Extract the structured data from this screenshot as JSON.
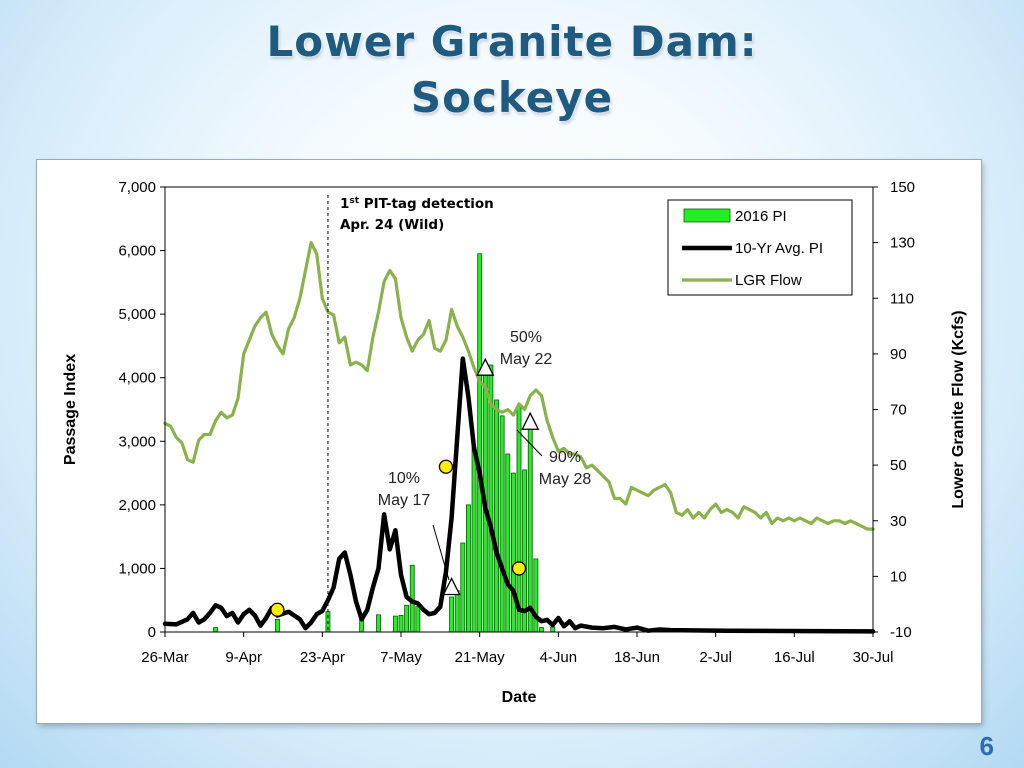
{
  "slide": {
    "title_line1": "Lower Granite Dam:",
    "title_line2": "Sockeye",
    "page_number": "6"
  },
  "chart_data": {
    "type": "bar",
    "title": "",
    "xlabel": "Date",
    "ylabel": "Passage Index",
    "y2label": "Lower Granite Flow  (Kcfs)",
    "ylim": [
      0,
      7000
    ],
    "y2lim": [
      -10,
      150
    ],
    "y_ticks": [
      "0",
      "1,000",
      "2,000",
      "3,000",
      "4,000",
      "5,000",
      "6,000",
      "7,000"
    ],
    "y2_ticks": [
      "-10",
      "10",
      "30",
      "50",
      "70",
      "90",
      "110",
      "130",
      "150"
    ],
    "x_range_days": [
      0,
      126
    ],
    "x_ticks": [
      {
        "day": 0,
        "label": "26-Mar"
      },
      {
        "day": 14,
        "label": "9-Apr"
      },
      {
        "day": 28,
        "label": "23-Apr"
      },
      {
        "day": 42,
        "label": "7-May"
      },
      {
        "day": 56,
        "label": "21-May"
      },
      {
        "day": 70,
        "label": "4-Jun"
      },
      {
        "day": 84,
        "label": "18-Jun"
      },
      {
        "day": 98,
        "label": "2-Jul"
      },
      {
        "day": 112,
        "label": "16-Jul"
      },
      {
        "day": 126,
        "label": "30-Jul"
      }
    ],
    "grid": false,
    "legend_position": "top-right",
    "colors": {
      "bar": "#22ee22",
      "bar_edge": "#115511",
      "avg": "#000000",
      "flow": "#8ab24a",
      "marker": "#ffee00"
    },
    "series": [
      {
        "name": "2016 PI",
        "type": "bar",
        "axis": "left",
        "points": [
          [
            9,
            70
          ],
          [
            20,
            200
          ],
          [
            29,
            320
          ],
          [
            35,
            260
          ],
          [
            38,
            270
          ],
          [
            41,
            250
          ],
          [
            42,
            260
          ],
          [
            43,
            420
          ],
          [
            44,
            1050
          ],
          [
            45,
            400
          ],
          [
            51,
            550
          ],
          [
            52,
            650
          ],
          [
            53,
            1400
          ],
          [
            54,
            2000
          ],
          [
            55,
            2900
          ],
          [
            56,
            5950
          ],
          [
            57,
            4200
          ],
          [
            58,
            4200
          ],
          [
            59,
            3650
          ],
          [
            60,
            3400
          ],
          [
            61,
            2800
          ],
          [
            62,
            2500
          ],
          [
            63,
            3550
          ],
          [
            64,
            2550
          ],
          [
            65,
            3300
          ],
          [
            66,
            1150
          ],
          [
            67,
            70
          ],
          [
            69,
            80
          ]
        ]
      },
      {
        "name": "10-Yr Avg. PI",
        "type": "line",
        "axis": "left",
        "points": [
          [
            0,
            130
          ],
          [
            2,
            120
          ],
          [
            4,
            200
          ],
          [
            5,
            300
          ],
          [
            6,
            150
          ],
          [
            7,
            200
          ],
          [
            8,
            300
          ],
          [
            9,
            420
          ],
          [
            10,
            380
          ],
          [
            11,
            250
          ],
          [
            12,
            300
          ],
          [
            13,
            150
          ],
          [
            14,
            280
          ],
          [
            15,
            350
          ],
          [
            16,
            260
          ],
          [
            17,
            100
          ],
          [
            18,
            220
          ],
          [
            19,
            380
          ],
          [
            20,
            260
          ],
          [
            22,
            320
          ],
          [
            24,
            200
          ],
          [
            25,
            60
          ],
          [
            26,
            150
          ],
          [
            27,
            280
          ],
          [
            28,
            330
          ],
          [
            29,
            500
          ],
          [
            30,
            700
          ],
          [
            31,
            1150
          ],
          [
            32,
            1250
          ],
          [
            33,
            900
          ],
          [
            34,
            480
          ],
          [
            35,
            200
          ],
          [
            36,
            350
          ],
          [
            37,
            700
          ],
          [
            38,
            1000
          ],
          [
            39,
            1850
          ],
          [
            40,
            1300
          ],
          [
            41,
            1600
          ],
          [
            42,
            900
          ],
          [
            43,
            550
          ],
          [
            44,
            480
          ],
          [
            45,
            450
          ],
          [
            46,
            350
          ],
          [
            47,
            280
          ],
          [
            48,
            300
          ],
          [
            49,
            400
          ],
          [
            50,
            950
          ],
          [
            51,
            1800
          ],
          [
            52,
            3050
          ],
          [
            53,
            4300
          ],
          [
            54,
            3700
          ],
          [
            55,
            2900
          ],
          [
            56,
            2500
          ],
          [
            57,
            1950
          ],
          [
            58,
            1650
          ],
          [
            59,
            1250
          ],
          [
            60,
            1000
          ],
          [
            61,
            750
          ],
          [
            62,
            650
          ],
          [
            63,
            350
          ],
          [
            64,
            330
          ],
          [
            65,
            380
          ],
          [
            66,
            240
          ],
          [
            67,
            170
          ],
          [
            68,
            190
          ],
          [
            69,
            110
          ],
          [
            70,
            220
          ],
          [
            71,
            90
          ],
          [
            72,
            170
          ],
          [
            73,
            60
          ],
          [
            74,
            100
          ],
          [
            76,
            70
          ],
          [
            78,
            60
          ],
          [
            80,
            80
          ],
          [
            82,
            40
          ],
          [
            84,
            70
          ],
          [
            86,
            20
          ],
          [
            88,
            40
          ],
          [
            90,
            30
          ],
          [
            94,
            25
          ],
          [
            100,
            20
          ],
          [
            110,
            15
          ],
          [
            126,
            10
          ]
        ]
      },
      {
        "name": "LGR Flow",
        "type": "line",
        "axis": "right",
        "points": [
          [
            0,
            65
          ],
          [
            1,
            64
          ],
          [
            2,
            60
          ],
          [
            3,
            58
          ],
          [
            4,
            52
          ],
          [
            5,
            51
          ],
          [
            6,
            59
          ],
          [
            7,
            61
          ],
          [
            8,
            61
          ],
          [
            9,
            66
          ],
          [
            10,
            69
          ],
          [
            11,
            67
          ],
          [
            12,
            68
          ],
          [
            13,
            74
          ],
          [
            14,
            90
          ],
          [
            15,
            95
          ],
          [
            16,
            100
          ],
          [
            17,
            103
          ],
          [
            18,
            105
          ],
          [
            19,
            97
          ],
          [
            20,
            93
          ],
          [
            21,
            90
          ],
          [
            22,
            99
          ],
          [
            23,
            103
          ],
          [
            24,
            110
          ],
          [
            25,
            120
          ],
          [
            26,
            130
          ],
          [
            27,
            126
          ],
          [
            28,
            110
          ],
          [
            29,
            105
          ],
          [
            30,
            104
          ],
          [
            31,
            94
          ],
          [
            32,
            96
          ],
          [
            33,
            86
          ],
          [
            34,
            87
          ],
          [
            35,
            86
          ],
          [
            36,
            84
          ],
          [
            37,
            96
          ],
          [
            38,
            105
          ],
          [
            39,
            116
          ],
          [
            40,
            120
          ],
          [
            41,
            117
          ],
          [
            42,
            103
          ],
          [
            43,
            96
          ],
          [
            44,
            91
          ],
          [
            45,
            95
          ],
          [
            46,
            97
          ],
          [
            47,
            102
          ],
          [
            48,
            92
          ],
          [
            49,
            91
          ],
          [
            50,
            95
          ],
          [
            51,
            106
          ],
          [
            52,
            100
          ],
          [
            53,
            96
          ],
          [
            54,
            91
          ],
          [
            55,
            85
          ],
          [
            56,
            80
          ],
          [
            57,
            78
          ],
          [
            58,
            72
          ],
          [
            59,
            70
          ],
          [
            60,
            69
          ],
          [
            61,
            70
          ],
          [
            62,
            68
          ],
          [
            63,
            72
          ],
          [
            64,
            70
          ],
          [
            65,
            75
          ],
          [
            66,
            77
          ],
          [
            67,
            75
          ],
          [
            68,
            66
          ],
          [
            69,
            60
          ],
          [
            70,
            55
          ],
          [
            71,
            56
          ],
          [
            72,
            54
          ],
          [
            73,
            54
          ],
          [
            74,
            53
          ],
          [
            75,
            49
          ],
          [
            76,
            50
          ],
          [
            77,
            48
          ],
          [
            78,
            46
          ],
          [
            79,
            44
          ],
          [
            80,
            38
          ],
          [
            81,
            38
          ],
          [
            82,
            36
          ],
          [
            83,
            42
          ],
          [
            84,
            41
          ],
          [
            85,
            40
          ],
          [
            86,
            39
          ],
          [
            87,
            41
          ],
          [
            88,
            42
          ],
          [
            89,
            43
          ],
          [
            90,
            40
          ],
          [
            91,
            33
          ],
          [
            92,
            32
          ],
          [
            93,
            34
          ],
          [
            94,
            31
          ],
          [
            95,
            33
          ],
          [
            96,
            31
          ],
          [
            97,
            34
          ],
          [
            98,
            36
          ],
          [
            99,
            33
          ],
          [
            100,
            34
          ],
          [
            101,
            33
          ],
          [
            102,
            31
          ],
          [
            103,
            35
          ],
          [
            104,
            34
          ],
          [
            105,
            33
          ],
          [
            106,
            31
          ],
          [
            107,
            33
          ],
          [
            108,
            29
          ],
          [
            109,
            31
          ],
          [
            110,
            30
          ],
          [
            111,
            31
          ],
          [
            112,
            30
          ],
          [
            113,
            31
          ],
          [
            114,
            30
          ],
          [
            115,
            29
          ],
          [
            116,
            31
          ],
          [
            117,
            30
          ],
          [
            118,
            29
          ],
          [
            119,
            30
          ],
          [
            120,
            30
          ],
          [
            121,
            29
          ],
          [
            122,
            30
          ],
          [
            123,
            29
          ],
          [
            124,
            28
          ],
          [
            125,
            27
          ],
          [
            126,
            27
          ]
        ]
      }
    ],
    "markers": {
      "milestone_triangles": [
        {
          "day": 51,
          "value": 700
        },
        {
          "day": 57,
          "value": 4150
        },
        {
          "day": 65,
          "value": 3300
        }
      ],
      "yellow_circles": [
        {
          "day": 20,
          "value": 350
        },
        {
          "day": 50,
          "value": 2600
        },
        {
          "day": 63,
          "value": 1000
        }
      ]
    },
    "annotations": {
      "pit_line_day": 29,
      "pit_text_line1_base": "1",
      "pit_text_line1_sup": "st",
      "pit_text_line1_rest": " PIT-tag detection",
      "pit_text_line2": "Apr. 24 (Wild)",
      "p10_pct": "10%",
      "p10_date": "May 17",
      "p50_pct": "50%",
      "p50_date": "May 22",
      "p90_pct": "90%",
      "p90_date": "May 28"
    }
  }
}
